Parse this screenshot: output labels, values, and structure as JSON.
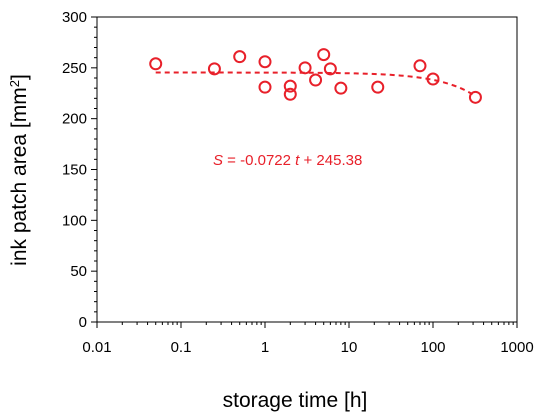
{
  "chart_data": {
    "type": "scatter",
    "x_scale": "log",
    "xlim": [
      0.01,
      1000
    ],
    "ylim": [
      0,
      300
    ],
    "xlabel": "storage time [h]",
    "ylabel_main": "ink patch area [mm",
    "ylabel_sup": "2",
    "ylabel_end": "]",
    "x_ticks": [
      0.01,
      0.1,
      1,
      10,
      100,
      1000
    ],
    "x_tick_labels": [
      "0.01",
      "0.1",
      "1",
      "10",
      "100",
      "1000"
    ],
    "y_ticks": [
      0,
      50,
      100,
      150,
      200,
      250,
      300
    ],
    "y_tick_labels": [
      "0",
      "50",
      "100",
      "150",
      "200",
      "250",
      "300"
    ],
    "grid": false,
    "marker_color": "#e8202a",
    "series": [
      {
        "marker": "open-circle",
        "points": [
          {
            "x": 0.05,
            "y": 254
          },
          {
            "x": 0.25,
            "y": 249
          },
          {
            "x": 0.5,
            "y": 261
          },
          {
            "x": 1,
            "y": 256
          },
          {
            "x": 1,
            "y": 231
          },
          {
            "x": 2,
            "y": 232
          },
          {
            "x": 2,
            "y": 224
          },
          {
            "x": 3,
            "y": 250
          },
          {
            "x": 4,
            "y": 238
          },
          {
            "x": 5,
            "y": 263
          },
          {
            "x": 6,
            "y": 249
          },
          {
            "x": 8,
            "y": 230
          },
          {
            "x": 22,
            "y": 231
          },
          {
            "x": 70,
            "y": 252
          },
          {
            "x": 100,
            "y": 239
          },
          {
            "x": 320,
            "y": 221
          }
        ]
      }
    ],
    "fit_line": {
      "style": "dashed",
      "slope": -0.0722,
      "intercept": 245.38,
      "x_range": [
        0.05,
        320
      ]
    },
    "annotation": {
      "var": "S",
      "text": " = -0.0722 ",
      "t_var": "t",
      "text_end": " + 245.38"
    }
  }
}
